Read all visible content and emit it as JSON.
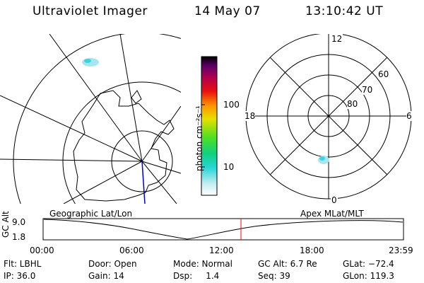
{
  "header": {
    "title": "Ultraviolet Imager",
    "date": "14 May 07",
    "time": "13:10:42 UT"
  },
  "colorbar": {
    "unit_label": "photon cm⁻²s⁻¹",
    "tick_100": "100",
    "tick_10": "10"
  },
  "polar_plot": {
    "labels": {
      "top": "12",
      "left": "18",
      "right": "6",
      "bottom": "0",
      "lat60": "60",
      "lat70": "70",
      "lat80": "80"
    }
  },
  "panel_labels": {
    "geographic": "Geographic Lat/Lon",
    "apex": "Apex  MLat/MLT"
  },
  "timeline": {
    "y_axis_label": "GC Alt",
    "y_max": "9.0",
    "y_min": "1.8",
    "x_ticks": [
      "00:00",
      "06:00",
      "12:00",
      "18:00",
      "23:59"
    ],
    "current_marker_color": "#ff0000"
  },
  "status": {
    "flt": "Flt: LBHL",
    "ip": "IP: 36.0",
    "door": "Door: Open",
    "gain": "Gain: 14",
    "mode": "Mode: Normal",
    "dsp": "Dsp:     1.4",
    "gc_alt": "GC Alt: 6.7 Re",
    "seq": "Seq: 39",
    "glat": "GLat: −72.4",
    "glon": "GLon: 119.3"
  }
}
